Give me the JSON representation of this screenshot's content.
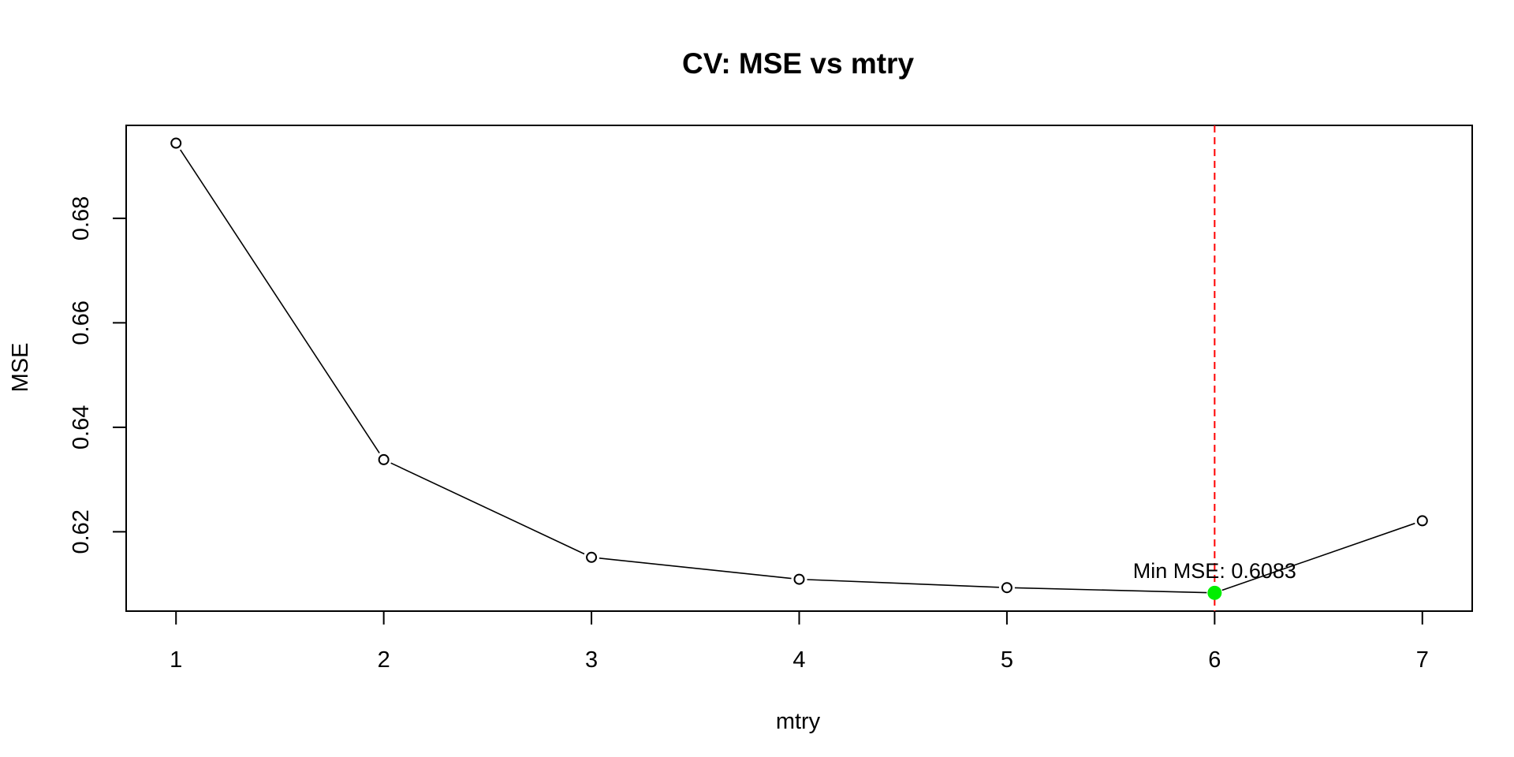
{
  "chart_data": {
    "type": "line",
    "title": "CV: MSE vs mtry",
    "xlabel": "mtry",
    "ylabel": "MSE",
    "x": [
      1,
      2,
      3,
      4,
      5,
      6,
      7
    ],
    "y": [
      0.6944,
      0.6338,
      0.6151,
      0.6109,
      0.6093,
      0.6083,
      0.6221
    ],
    "xlim": [
      0.76,
      7.24
    ],
    "ylim": [
      0.6048,
      0.6978
    ],
    "x_ticks": [
      1,
      2,
      3,
      4,
      5,
      6,
      7
    ],
    "y_ticks": [
      0.62,
      0.64,
      0.66,
      0.68
    ],
    "y_tick_labels": [
      "0.62",
      "0.64",
      "0.66",
      "0.68"
    ],
    "grid": false,
    "highlight": {
      "x": 6,
      "y": 0.6083,
      "label": "Min MSE: 0.6083",
      "color": "#00ee00"
    },
    "vline": {
      "x": 6,
      "color": "#ff0000",
      "style": "dashed"
    },
    "line_color": "#000000"
  }
}
